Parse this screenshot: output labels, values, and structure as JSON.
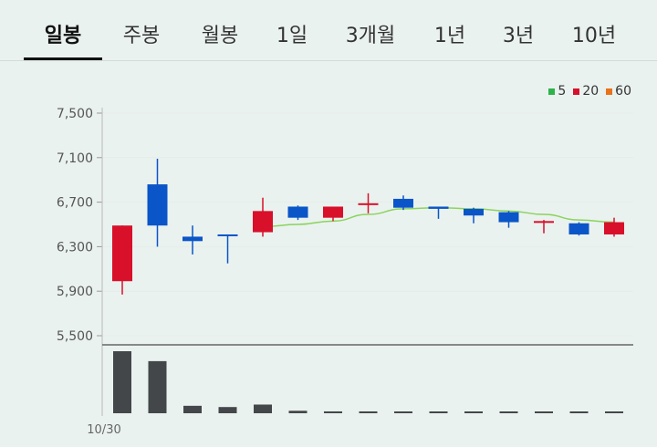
{
  "tabs": [
    {
      "label": "일봉",
      "active": true
    },
    {
      "label": "주봉"
    },
    {
      "label": "월봉"
    },
    {
      "label": "1일"
    },
    {
      "label": "3개월"
    },
    {
      "label": "1년"
    },
    {
      "label": "3년"
    },
    {
      "label": "10년"
    }
  ],
  "colors": {
    "up": "#d8102a",
    "down": "#0a55c8",
    "ma5": "#8bd35e",
    "ma20_swatch": "#d8102a",
    "ma60_swatch": "#e8731a",
    "ma5_swatch": "#2db34a",
    "volume": "#44474a",
    "axis": "#666666"
  },
  "chart_data": {
    "type": "candlestick",
    "legend": [
      {
        "name": "5",
        "color": "#2db34a"
      },
      {
        "name": "20",
        "color": "#d8102a"
      },
      {
        "name": "60",
        "color": "#e8731a"
      }
    ],
    "ylim": [
      5500,
      7500
    ],
    "yticks": [
      "7,500",
      "7,100",
      "6,700",
      "6,300",
      "5,900",
      "5,500"
    ],
    "ytick_values": [
      7500,
      7100,
      6700,
      6300,
      5900,
      5500
    ],
    "x_label_first": "10/30",
    "candles": [
      {
        "open": 5990,
        "close": 6490,
        "high": 6490,
        "low": 5870
      },
      {
        "open": 6860,
        "close": 6490,
        "high": 7090,
        "low": 6300
      },
      {
        "open": 6390,
        "close": 6350,
        "high": 6490,
        "low": 6230
      },
      {
        "open": 6410,
        "close": 6400,
        "high": 6410,
        "low": 6150
      },
      {
        "open": 6430,
        "close": 6620,
        "high": 6740,
        "low": 6390
      },
      {
        "open": 6660,
        "close": 6560,
        "high": 6670,
        "low": 6540
      },
      {
        "open": 6560,
        "close": 6660,
        "high": 6660,
        "low": 6530
      },
      {
        "open": 6680,
        "close": 6690,
        "high": 6780,
        "low": 6600
      },
      {
        "open": 6730,
        "close": 6650,
        "high": 6760,
        "low": 6630
      },
      {
        "open": 6660,
        "close": 6640,
        "high": 6660,
        "low": 6550
      },
      {
        "open": 6640,
        "close": 6580,
        "high": 6650,
        "low": 6510
      },
      {
        "open": 6610,
        "close": 6520,
        "high": 6620,
        "low": 6470
      },
      {
        "open": 6520,
        "close": 6530,
        "high": 6540,
        "low": 6420
      },
      {
        "open": 6510,
        "close": 6410,
        "high": 6520,
        "low": 6400
      },
      {
        "open": 6410,
        "close": 6520,
        "high": 6560,
        "low": 6390
      }
    ],
    "ma5": [
      null,
      null,
      null,
      null,
      6480,
      6500,
      6530,
      6590,
      6640,
      6650,
      6640,
      6620,
      6590,
      6540,
      6520
    ],
    "volume": [
      100,
      84,
      12,
      10,
      14,
      4,
      3,
      3,
      2,
      2,
      2,
      1,
      2,
      2,
      2
    ]
  }
}
